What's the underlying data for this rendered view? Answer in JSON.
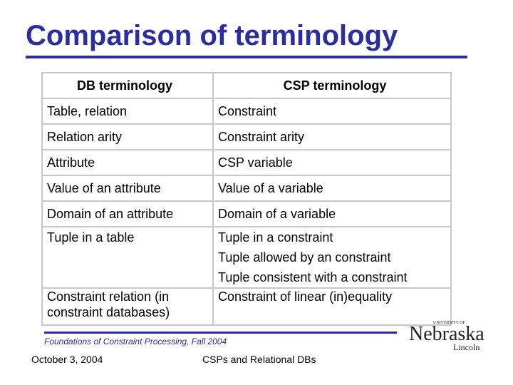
{
  "slide": {
    "title": "Comparison of terminology",
    "table": {
      "headers": [
        "DB terminology",
        "CSP terminology"
      ],
      "rows": [
        {
          "db": "Table, relation",
          "csp": [
            "Constraint"
          ]
        },
        {
          "db": "Relation arity",
          "csp": [
            "Constraint arity"
          ]
        },
        {
          "db": "Attribute",
          "csp": [
            "CSP variable"
          ]
        },
        {
          "db": "Value of an attribute",
          "csp": [
            "Value of a variable"
          ]
        },
        {
          "db": "Domain of an attribute",
          "csp": [
            "Domain of a variable"
          ]
        },
        {
          "db": "Tuple in a table",
          "csp": [
            "Tuple in a constraint",
            "Tuple allowed by an constraint",
            "Tuple consistent with a constraint"
          ]
        },
        {
          "db": [
            "Constraint relation (in",
            "constraint databases)"
          ],
          "csp": [
            "Constraint of linear (in)equality"
          ]
        }
      ]
    },
    "footer": {
      "course": "Foundations of Constraint Processing, Fall 2004",
      "date": "October 3, 2004",
      "deck": "CSPs and Relational DBs"
    },
    "logo": {
      "university": "UNIVERSITY OF",
      "name": "Nebraska",
      "campus": "Lincoln",
      "color": "#222222"
    },
    "colors": {
      "accent": "#2c2e9c",
      "grid": "#c8c8c8"
    }
  }
}
